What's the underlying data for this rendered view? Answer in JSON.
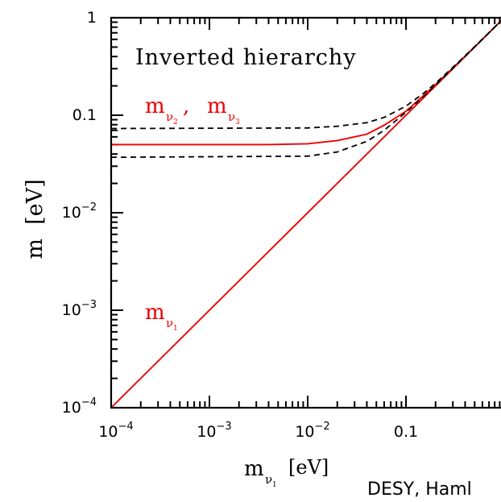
{
  "chart_data": {
    "type": "line",
    "annotation": "Inverted hierarchy",
    "xlabel_main": "m",
    "xlabel_sub": "ν",
    "xlabel_subsub": "1",
    "xlabel_unit": "[eV]",
    "ylabel": "m  [eV]",
    "footer": "DESY, Haml",
    "x_scale": "log",
    "y_scale": "log",
    "xlim": [
      0.0001,
      1
    ],
    "ylim": [
      0.0001,
      1
    ],
    "x_ticks": [
      {
        "value": 0.0001,
        "base": "10",
        "exp": "−4"
      },
      {
        "value": 0.001,
        "base": "10",
        "exp": "−3"
      },
      {
        "value": 0.01,
        "base": "10",
        "exp": "−2"
      },
      {
        "value": 0.1,
        "base": "0.1",
        "exp": ""
      }
    ],
    "y_ticks": [
      {
        "value": 0.0001,
        "base": "10",
        "exp": "−4"
      },
      {
        "value": 0.001,
        "base": "10",
        "exp": "−3"
      },
      {
        "value": 0.01,
        "base": "10",
        "exp": "−2"
      },
      {
        "value": 0.1,
        "base": "0.1",
        "exp": ""
      },
      {
        "value": 1,
        "base": "1",
        "exp": ""
      }
    ],
    "series_labels": {
      "m2m3": {
        "m": "m",
        "nu": "ν",
        "sub_a": "2",
        "sub_b": "3",
        "sep": ","
      },
      "m1": {
        "m": "m",
        "nu": "ν",
        "sub_a": "1"
      }
    },
    "series": [
      {
        "label_ref": "m2m3",
        "style": "solid",
        "color": "#ee0000",
        "x": [
          0.0001,
          0.004,
          0.01,
          0.02,
          0.04,
          0.06,
          0.1,
          0.15,
          0.2,
          0.3,
          0.5,
          0.7,
          1.0
        ],
        "y": [
          0.05,
          0.05,
          0.051,
          0.055,
          0.064,
          0.079,
          0.11,
          0.158,
          0.206,
          0.304,
          0.502,
          0.701,
          1.0
        ]
      },
      {
        "label_ref": "m1",
        "style": "solid",
        "color": "#ee0000",
        "x": [
          0.0001,
          1.0
        ],
        "y": [
          0.0001,
          1.0
        ]
      },
      {
        "style": "dashed",
        "color": "#000000",
        "x": [
          0.0001,
          0.01,
          0.02,
          0.04,
          0.06,
          0.1,
          0.15,
          0.2,
          0.3,
          0.5,
          0.7,
          1.0
        ],
        "y": [
          0.073,
          0.074,
          0.077,
          0.084,
          0.095,
          0.124,
          0.167,
          0.213,
          0.309,
          0.505,
          0.703,
          1.0
        ]
      },
      {
        "style": "dashed",
        "color": "#000000",
        "x": [
          0.0001,
          0.01,
          0.02,
          0.04,
          0.06,
          0.1,
          0.15,
          0.2,
          0.3,
          0.5,
          0.7,
          1.0
        ],
        "y": [
          0.037,
          0.038,
          0.042,
          0.054,
          0.07,
          0.107,
          0.154,
          0.203,
          0.302,
          0.501,
          0.701,
          1.0
        ]
      }
    ],
    "grid": false,
    "legend": "none"
  }
}
